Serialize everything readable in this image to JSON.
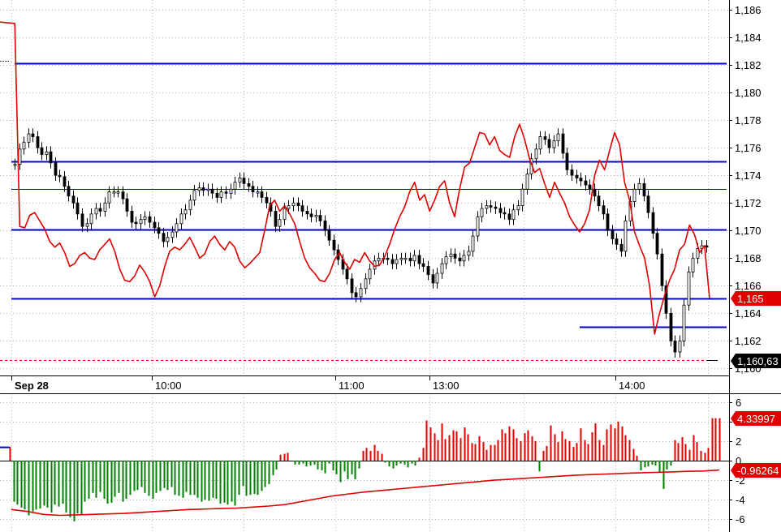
{
  "colors": {
    "background": "#ffffff",
    "grid": "#b4b4b4",
    "price_line": "#e00000",
    "candle": "#000000",
    "level_line": "#0000cc",
    "hist_pos": "#e00000",
    "hist_neg": "#008000",
    "signal": "#e00000",
    "badge_red": "#e00000",
    "badge_black": "#000000"
  },
  "chart_data": [
    {
      "type": "line",
      "title": "",
      "x_labels": [
        "Sep 28",
        "10:00",
        "11:00",
        "13:00",
        "14:00"
      ],
      "ylim": [
        1.1595,
        1.1867
      ],
      "y_ticks": [
        "1,160",
        "1,162",
        "1,164",
        "1,166",
        "1,168",
        "1,170",
        "1,172",
        "1,174",
        "1,176",
        "1,178",
        "1,180",
        "1,182",
        "1,184",
        "1,186"
      ],
      "last_price_label": "1,165",
      "low_marker_label": "1,160,63",
      "horizontal_levels": [
        1.1821,
        1.175,
        1.173,
        1.1701,
        1.1651,
        1.163
      ],
      "low_marker_value": 1.1606,
      "series": [
        {
          "style": "red-line",
          "values": [
            1.1851,
            1.185,
            1.1703,
            1.1702,
            1.1711,
            1.1713,
            1.1707,
            1.1701,
            1.1692,
            1.1688,
            1.1691,
            1.1684,
            1.1674,
            1.1676,
            1.1682,
            1.1684,
            1.168,
            1.1679,
            1.1686,
            1.169,
            1.1694,
            1.1685,
            1.1672,
            1.1664,
            1.1663,
            1.1667,
            1.1675,
            1.167,
            1.1663,
            1.1652,
            1.166,
            1.1674,
            1.1685,
            1.1688,
            1.1686,
            1.169,
            1.1695,
            1.1688,
            1.168,
            1.1683,
            1.1692,
            1.1696,
            1.169,
            1.1686,
            1.1692,
            1.1688,
            1.1678,
            1.1673,
            1.1676,
            1.168,
            1.1684,
            1.17,
            1.1718,
            1.1722,
            1.1714,
            1.1718,
            1.1712,
            1.1705,
            1.1692,
            1.168,
            1.1673,
            1.1669,
            1.1664,
            1.1663,
            1.1669,
            1.1679,
            1.1684,
            1.1677,
            1.1672,
            1.1679,
            1.1677,
            1.1684,
            1.1678,
            1.1674,
            1.1675,
            1.1681,
            1.169,
            1.1701,
            1.171,
            1.1717,
            1.1728,
            1.1735,
            1.1722,
            1.1726,
            1.1714,
            1.1722,
            1.1732,
            1.1736,
            1.172,
            1.171,
            1.173,
            1.1746,
            1.1749,
            1.176,
            1.1771,
            1.177,
            1.1762,
            1.1768,
            1.1758,
            1.1755,
            1.1753,
            1.1768,
            1.1777,
            1.1766,
            1.1752,
            1.1742,
            1.1745,
            1.1734,
            1.1724,
            1.1735,
            1.1727,
            1.172,
            1.171,
            1.1704,
            1.1699,
            1.1705,
            1.1715,
            1.174,
            1.1751,
            1.1744,
            1.1758,
            1.1771,
            1.1762,
            1.1735,
            1.1722,
            1.1699,
            1.1689,
            1.168,
            1.166,
            1.1625,
            1.164,
            1.1653,
            1.1664,
            1.1672,
            1.1686,
            1.169,
            1.1704,
            1.1697,
            1.1684,
            1.1689,
            1.1651
          ]
        },
        {
          "style": "ohlc-candles",
          "values": [
            1.1748,
            1.1759,
            1.1764,
            1.177,
            1.1768,
            1.176,
            1.1755,
            1.1757,
            1.1749,
            1.174,
            1.1739,
            1.1732,
            1.1725,
            1.172,
            1.1712,
            1.1703,
            1.1705,
            1.1712,
            1.1716,
            1.1714,
            1.172,
            1.1728,
            1.1728,
            1.1728,
            1.1723,
            1.1714,
            1.1706,
            1.1705,
            1.1708,
            1.171,
            1.1706,
            1.1702,
            1.1698,
            1.1692,
            1.1695,
            1.1699,
            1.1705,
            1.1712,
            1.1715,
            1.1722,
            1.1729,
            1.1731,
            1.1729,
            1.173,
            1.1727,
            1.1724,
            1.1728,
            1.1727,
            1.173,
            1.1735,
            1.1738,
            1.1734,
            1.1732,
            1.1728,
            1.1728,
            1.1724,
            1.172,
            1.1714,
            1.1703,
            1.1708,
            1.1716,
            1.1718,
            1.172,
            1.1718,
            1.1714,
            1.1712,
            1.171,
            1.1711,
            1.1707,
            1.17,
            1.1693,
            1.1686,
            1.1679,
            1.1672,
            1.1665,
            1.1655,
            1.1652,
            1.1658,
            1.1665,
            1.1672,
            1.1678,
            1.168,
            1.168,
            1.1679,
            1.1676,
            1.1679,
            1.168,
            1.168,
            1.1678,
            1.1682,
            1.1676,
            1.1674,
            1.1668,
            1.1662,
            1.1669,
            1.1676,
            1.1681,
            1.1683,
            1.168,
            1.1678,
            1.1682,
            1.1685,
            1.1696,
            1.171,
            1.1716,
            1.1718,
            1.1717,
            1.1716,
            1.1713,
            1.1712,
            1.1708,
            1.1715,
            1.1718,
            1.173,
            1.1741,
            1.1752,
            1.1759,
            1.1768,
            1.1766,
            1.176,
            1.1765,
            1.177,
            1.1756,
            1.1744,
            1.174,
            1.1738,
            1.1736,
            1.1733,
            1.173,
            1.1725,
            1.1718,
            1.1712,
            1.17,
            1.1694,
            1.169,
            1.1685,
            1.1707,
            1.1721,
            1.173,
            1.1734,
            1.1725,
            1.1713,
            1.1698,
            1.1683,
            1.166,
            1.164,
            1.162,
            1.1612,
            1.162,
            1.1646,
            1.167,
            1.168,
            1.1687,
            1.1689,
            1.1688
          ]
        }
      ]
    },
    {
      "type": "bar",
      "title": "",
      "ylim": [
        -7.3,
        6.8
      ],
      "y_ticks": [
        "6",
        "4",
        "2",
        "0",
        "-2",
        "-4",
        "-6"
      ],
      "value_labels": [
        "4.33997",
        "-0.96264"
      ],
      "series": [
        {
          "style": "histogram",
          "values": [
            1.4,
            -4.2,
            -4.5,
            -4.8,
            -5.0,
            -5.6,
            -5.2,
            -5.0,
            -4.9,
            -4.6,
            -4.8,
            -5.3,
            -4.5,
            -4.7,
            -4.4,
            -5.3,
            -5.8,
            -6.2,
            -5.4,
            -5.5,
            -4.2,
            -3.9,
            -3.3,
            -3.8,
            -3.2,
            -3.9,
            -4.4,
            -4.3,
            -3.7,
            -3.3,
            -4.2,
            -3.9,
            -3.5,
            -3.1,
            -3.0,
            -2.7,
            -3.3,
            -3.6,
            -3.9,
            -3.3,
            -3.1,
            -2.8,
            -3.0,
            -2.7,
            -3.5,
            -3.6,
            -3.8,
            -3.2,
            -3.5,
            -3.5,
            -3.8,
            -4.2,
            -4.0,
            -4.1,
            -3.8,
            -3.9,
            -4.4,
            -4.3,
            -4.5,
            -4.2,
            -4.6,
            -3.5,
            -2.6,
            -3.6,
            -3.5,
            -3.4,
            -3.5,
            -3.1,
            -2.7,
            -2.4,
            -1.5,
            -0.9,
            0.6,
            0.7,
            0.8,
            0.0,
            -0.4,
            -0.4,
            -0.3,
            -0.6,
            -0.5,
            -0.4,
            -0.9,
            -1.0,
            -1.3,
            -0.3,
            -1.0,
            -1.4,
            -2.2,
            -1.1,
            -1.9,
            -1.4,
            -1.9,
            -0.8,
            1.0,
            1.3,
            1.0,
            1.6,
            1.0,
            0.7,
            -0.2,
            -0.6,
            -0.8,
            -0.5,
            -0.3,
            -0.4,
            -0.7,
            -0.3,
            -0.5,
            0.3,
            1.3,
            4.1,
            3.4,
            2.8,
            2.1,
            3.8,
            2.2,
            2.6,
            3.1,
            3.0,
            2.3,
            3.4,
            2.7,
            1.8,
            1.7,
            2.5,
            1.9,
            1.1,
            1.6,
            1.6,
            2.1,
            3.2,
            2.8,
            3.5,
            3.2,
            2.3,
            2.0,
            2.8,
            3.1,
            2.5,
            2.0,
            -1.1,
            1.0,
            1.5,
            3.6,
            2.7,
            1.9,
            3.0,
            2.2,
            2.0,
            1.4,
            1.8,
            3.3,
            2.1,
            1.7,
            2.9,
            3.8,
            2.1,
            1.6,
            3.2,
            3.7,
            3.3,
            4.0,
            3.5,
            2.6,
            2.1,
            1.2,
            0.5,
            -1.0,
            -0.7,
            -0.6,
            -0.4,
            -0.5,
            -1.2,
            -2.9,
            -0.9,
            -0.5,
            2.1,
            1.8,
            2.4,
            1.7,
            1.1,
            2.6,
            1.9,
            1.0,
            0.8,
            1.3,
            4.34,
            4.34,
            4.34
          ]
        },
        {
          "style": "signal-line",
          "values": [
            -5.0,
            -5.2,
            -5.5,
            -5.6,
            -5.55,
            -5.5,
            -5.45,
            -5.4,
            -5.3,
            -5.2,
            -5.1,
            -5.0,
            -4.95,
            -4.9,
            -4.85,
            -4.75,
            -4.65,
            -4.5,
            -4.2,
            -3.9,
            -3.6,
            -3.4,
            -3.2,
            -3.05,
            -2.9,
            -2.75,
            -2.6,
            -2.45,
            -2.3,
            -2.15,
            -2.0,
            -1.9,
            -1.8,
            -1.7,
            -1.6,
            -1.5,
            -1.43,
            -1.37,
            -1.3,
            -1.25,
            -1.2,
            -1.15,
            -1.1,
            -1.06,
            -0.96
          ]
        }
      ]
    }
  ]
}
